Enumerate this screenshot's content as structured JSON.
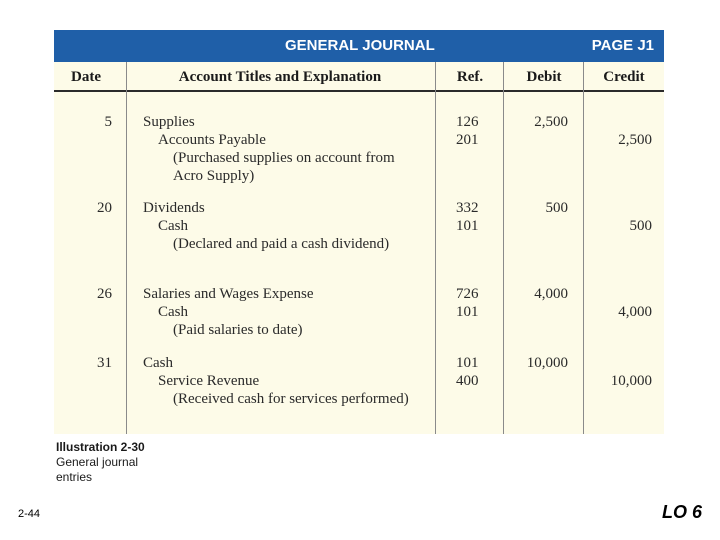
{
  "journal": {
    "title": "GENERAL JOURNAL",
    "page": "PAGE J1",
    "columns": {
      "date": "Date",
      "account": "Account Titles and Explanation",
      "ref": "Ref.",
      "debit": "Debit",
      "credit": "Credit"
    },
    "entries": [
      {
        "date": "5",
        "debit_account": "Supplies",
        "credit_account": "Accounts Payable",
        "explanation": "(Purchased supplies on account from Acro Supply)",
        "debit_ref": "126",
        "credit_ref": "201",
        "debit": "2,500",
        "credit": "2,500"
      },
      {
        "date": "20",
        "debit_account": "Dividends",
        "credit_account": "Cash",
        "explanation": "(Declared and paid a cash dividend)",
        "debit_ref": "332",
        "credit_ref": "101",
        "debit": "500",
        "credit": "500"
      },
      {
        "date": "26",
        "debit_account": "Salaries and Wages Expense",
        "credit_account": "Cash",
        "explanation": "(Paid salaries to date)",
        "debit_ref": "726",
        "credit_ref": "101",
        "debit": "4,000",
        "credit": "4,000"
      },
      {
        "date": "31",
        "debit_account": "Cash",
        "credit_account": "Service Revenue",
        "explanation": "(Received cash for services performed)",
        "debit_ref": "101",
        "credit_ref": "400",
        "debit": "10,000",
        "credit": "10,000"
      }
    ]
  },
  "caption": {
    "label": "Illustration 2-30",
    "text": "General journal entries"
  },
  "slide": {
    "number": "2-44",
    "objective": "LO 6"
  },
  "colors": {
    "title_bar": "#1f5fa8",
    "table_background": "#fdfbe8"
  }
}
